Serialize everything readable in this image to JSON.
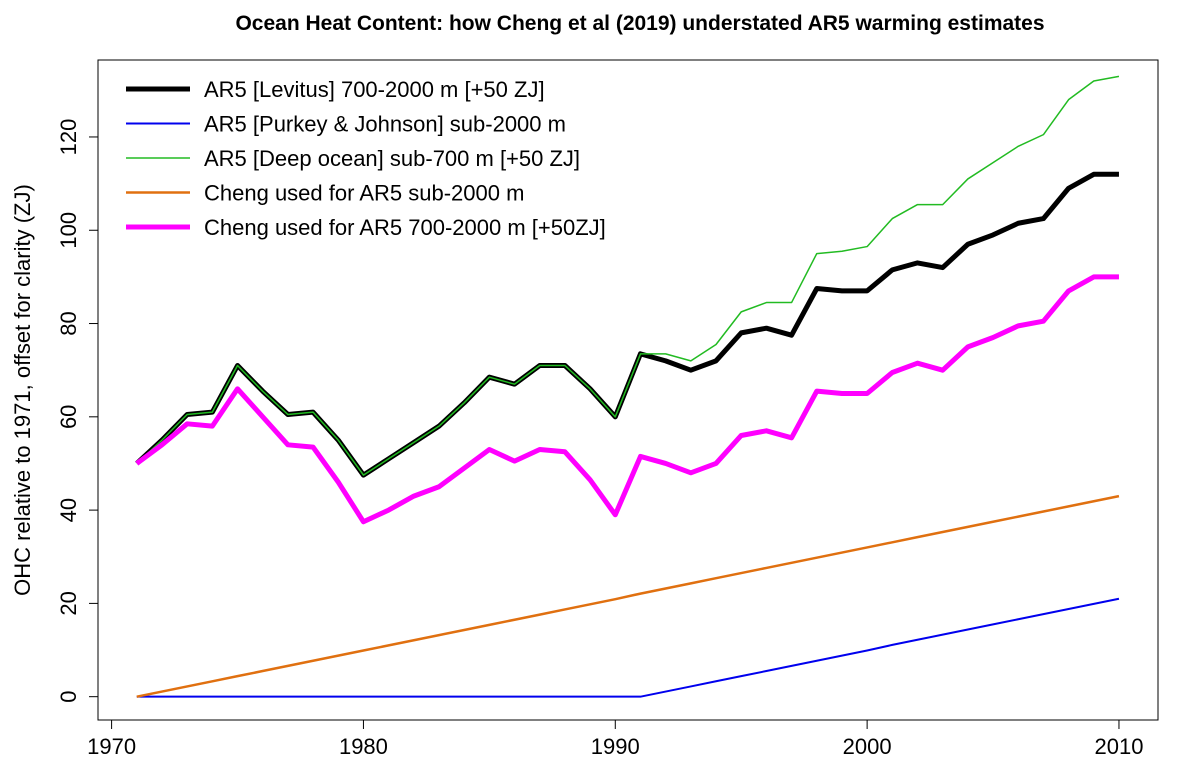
{
  "chart_data": {
    "type": "line",
    "title": "Ocean Heat Content: how Cheng et al (2019) understated AR5 warming estimates",
    "y_label": "OHC relative to 1971, offset for clarity (ZJ)",
    "x": [
      1971,
      1972,
      1973,
      1974,
      1975,
      1976,
      1977,
      1978,
      1979,
      1980,
      1981,
      1982,
      1983,
      1984,
      1985,
      1986,
      1987,
      1988,
      1989,
      1990,
      1991,
      1992,
      1993,
      1994,
      1995,
      1996,
      1997,
      1998,
      1999,
      2000,
      2001,
      2002,
      2003,
      2004,
      2005,
      2006,
      2007,
      2008,
      2009,
      2010
    ],
    "xlim": [
      1969.46,
      2011.55
    ],
    "xticks": [
      1970,
      1980,
      1990,
      2000,
      2010
    ],
    "ylim": [
      -5,
      136.5
    ],
    "yticks": [
      0,
      20,
      40,
      60,
      80,
      100,
      120
    ],
    "legend": "top-left",
    "series": [
      {
        "name": "AR5 [Levitus] 700-2000 m [+50 ZJ]",
        "color": "#000000",
        "width": 5,
        "values": [
          50,
          55,
          60.5,
          61,
          71,
          65.5,
          60.5,
          61,
          55,
          47.5,
          51,
          54.5,
          58,
          63,
          68.5,
          67,
          71,
          71,
          66,
          60,
          73.5,
          72,
          70,
          72,
          78,
          79,
          77.5,
          87.5,
          87,
          87,
          91.5,
          93,
          92,
          97,
          99,
          101.5,
          102.5,
          109,
          112,
          112
        ]
      },
      {
        "name": "AR5 [Purkey & Johnson] sub-2000 m",
        "color": "#0000ee",
        "width": 2,
        "values": [
          0,
          0,
          0,
          0,
          0,
          0,
          0,
          0,
          0,
          0,
          0,
          0,
          0,
          0,
          0,
          0,
          0,
          0,
          0,
          0,
          0,
          1.1,
          2.2,
          3.3,
          4.4,
          5.5,
          6.6,
          7.7,
          8.8,
          9.9,
          11.1,
          12.2,
          13.3,
          14.4,
          15.5,
          16.6,
          17.7,
          18.8,
          19.9,
          21
        ]
      },
      {
        "name": "AR5 [Deep ocean] sub-700 m [+50 ZJ]",
        "color": "#22bb22",
        "width": 1.5,
        "values": [
          50,
          55,
          60.5,
          61,
          71,
          65.5,
          60.5,
          61,
          55,
          47.5,
          51,
          54.5,
          58,
          63,
          68.5,
          67,
          71,
          71,
          66,
          60,
          73.5,
          73.5,
          72,
          75.5,
          82.5,
          84.5,
          84.5,
          95,
          95.5,
          96.5,
          102.5,
          105.5,
          105.5,
          111,
          114.5,
          118,
          120.5,
          128,
          132,
          133
        ]
      },
      {
        "name": "Cheng used for AR5 sub-2000 m",
        "color": "#e07010",
        "width": 2.5,
        "values": [
          0,
          1.1,
          2.2,
          3.3,
          4.4,
          5.5,
          6.6,
          7.7,
          8.8,
          9.9,
          11.0,
          12.1,
          13.2,
          14.3,
          15.4,
          16.5,
          17.6,
          18.7,
          19.8,
          20.9,
          22.1,
          23.2,
          24.3,
          25.4,
          26.5,
          27.6,
          28.7,
          29.8,
          30.9,
          32.0,
          33.1,
          34.2,
          35.3,
          36.4,
          37.5,
          38.6,
          39.7,
          40.8,
          41.9,
          43
        ]
      },
      {
        "name": "Cheng used for AR5 700-2000 m [+50ZJ]",
        "color": "#ff00ff",
        "width": 5,
        "values": [
          50,
          54,
          58.5,
          58,
          66,
          60,
          54,
          53.5,
          46,
          37.5,
          40,
          43,
          45,
          49,
          53,
          50.5,
          53,
          52.5,
          46.5,
          39,
          51.5,
          50,
          48,
          50,
          56,
          57,
          55.5,
          65.5,
          65,
          65,
          69.5,
          71.5,
          70,
          75,
          77,
          79.5,
          80.5,
          87,
          90,
          90
        ]
      }
    ]
  }
}
